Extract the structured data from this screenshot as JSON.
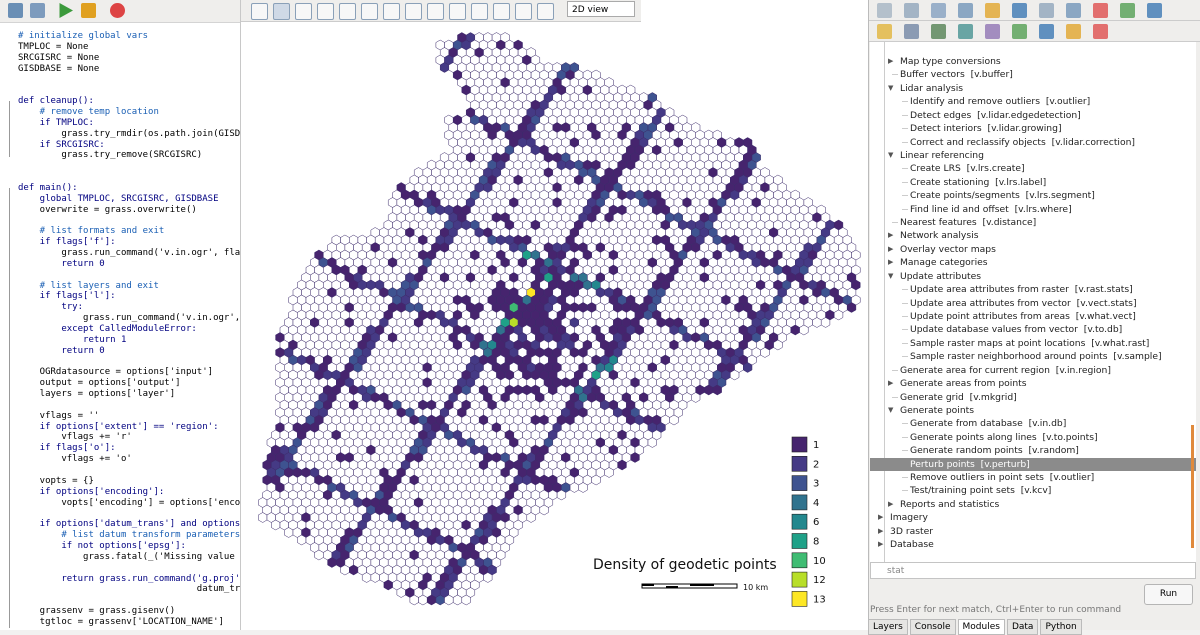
{
  "editor": {
    "blocks": [
      [
        "# initialize global vars",
        "TMPLOC = None",
        "SRCGISRC = None",
        "GISDBASE = None"
      ],
      [
        "def cleanup():",
        "    # remove temp location",
        "    if TMPLOC:",
        "        grass.try_rmdir(os.path.join(GISDBASE",
        "    if SRCGISRC:",
        "        grass.try_remove(SRCGISRC)"
      ],
      [
        "def main():",
        "    global TMPLOC, SRCGISRC, GISDBASE",
        "    overwrite = grass.overwrite()"
      ],
      [
        "    # list formats and exit",
        "    if flags['f']:",
        "        grass.run_command('v.in.ogr', flags",
        "        return 0"
      ],
      [
        "    # list layers and exit",
        "    if flags['l']:",
        "        try:",
        "            grass.run_command('v.in.ogr', f",
        "        except CalledModuleError:",
        "            return 1",
        "        return 0"
      ],
      [
        "    OGRdatasource = options['input']",
        "    output = options['output']",
        "    layers = options['layer']"
      ],
      [
        "    vflags = ''",
        "    if options['extent'] == 'region':",
        "        vflags += 'r'",
        "    if flags['o']:",
        "        vflags += 'o'"
      ],
      [
        "    vopts = {}",
        "    if options['encoding']:",
        "        vopts['encoding'] = options['encodi"
      ],
      [
        "    if options['datum_trans'] and options['",
        "        # list datum transform parameters",
        "        if not options['epsg']:",
        "            grass.fatal(_('Missing value fo"
      ],
      [
        "        return grass.run_command('g.proj', ",
        "                                 datum_trans"
      ],
      [
        "    grassenv = grass.gisenv()",
        "    tgtloc = grassenv['LOCATION_NAME']"
      ]
    ]
  },
  "map": {
    "view_mode": "2D view",
    "title": "Density of geodetic points",
    "scale_label": "10 km",
    "legend": [
      {
        "label": "1",
        "color": "#46246e"
      },
      {
        "label": "2",
        "color": "#453a85"
      },
      {
        "label": "3",
        "color": "#3e5390"
      },
      {
        "label": "4",
        "color": "#30738e"
      },
      {
        "label": "6",
        "color": "#23888e"
      },
      {
        "label": "8",
        "color": "#1fa188"
      },
      {
        "label": "10",
        "color": "#3fbc73"
      },
      {
        "label": "12",
        "color": "#b8de29"
      },
      {
        "label": "13",
        "color": "#fde725"
      }
    ]
  },
  "modules": {
    "items": [
      {
        "text": "Map type conversions",
        "level": 1,
        "node": "collapsed"
      },
      {
        "text": "Buffer vectors  [v.buffer]",
        "level": 1,
        "node": "leaf"
      },
      {
        "text": "Lidar analysis",
        "level": 1,
        "node": "expanded"
      },
      {
        "text": "Identify and remove outliers  [v.outlier]",
        "level": 2,
        "node": "leaf"
      },
      {
        "text": "Detect edges  [v.lidar.edgedetection]",
        "level": 2,
        "node": "leaf"
      },
      {
        "text": "Detect interiors  [v.lidar.growing]",
        "level": 2,
        "node": "leaf"
      },
      {
        "text": "Correct and reclassify objects  [v.lidar.correction]",
        "level": 2,
        "node": "leaf"
      },
      {
        "text": "Linear referencing",
        "level": 1,
        "node": "expanded"
      },
      {
        "text": "Create LRS  [v.lrs.create]",
        "level": 2,
        "node": "leaf"
      },
      {
        "text": "Create stationing  [v.lrs.label]",
        "level": 2,
        "node": "leaf"
      },
      {
        "text": "Create points/segments  [v.lrs.segment]",
        "level": 2,
        "node": "leaf"
      },
      {
        "text": "Find line id and offset  [v.lrs.where]",
        "level": 2,
        "node": "leaf"
      },
      {
        "text": "Nearest features  [v.distance]",
        "level": 1,
        "node": "leaf"
      },
      {
        "text": "Network analysis",
        "level": 1,
        "node": "collapsed"
      },
      {
        "text": "Overlay vector maps",
        "level": 1,
        "node": "collapsed"
      },
      {
        "text": "Manage categories",
        "level": 1,
        "node": "collapsed"
      },
      {
        "text": "Update attributes",
        "level": 1,
        "node": "expanded"
      },
      {
        "text": "Update area attributes from raster  [v.rast.stats]",
        "level": 2,
        "node": "leaf"
      },
      {
        "text": "Update area attributes from vector  [v.vect.stats]",
        "level": 2,
        "node": "leaf"
      },
      {
        "text": "Update point attributes from areas  [v.what.vect]",
        "level": 2,
        "node": "leaf"
      },
      {
        "text": "Update database values from vector  [v.to.db]",
        "level": 2,
        "node": "leaf"
      },
      {
        "text": "Sample raster maps at point locations  [v.what.rast]",
        "level": 2,
        "node": "leaf"
      },
      {
        "text": "Sample raster neighborhood around points  [v.sample]",
        "level": 2,
        "node": "leaf"
      },
      {
        "text": "Generate area for current region  [v.in.region]",
        "level": 1,
        "node": "leaf"
      },
      {
        "text": "Generate areas from points",
        "level": 1,
        "node": "collapsed"
      },
      {
        "text": "Generate grid  [v.mkgrid]",
        "level": 1,
        "node": "leaf"
      },
      {
        "text": "Generate points",
        "level": 1,
        "node": "expanded"
      },
      {
        "text": "Generate from database  [v.in.db]",
        "level": 2,
        "node": "leaf"
      },
      {
        "text": "Generate points along lines  [v.to.points]",
        "level": 2,
        "node": "leaf"
      },
      {
        "text": "Generate random points  [v.random]",
        "level": 2,
        "node": "leaf"
      },
      {
        "text": "Perturb points  [v.perturb]",
        "level": 2,
        "node": "leaf",
        "selected": true
      },
      {
        "text": "Remove outliers in point sets  [v.outlier]",
        "level": 2,
        "node": "leaf"
      },
      {
        "text": "Test/training point sets  [v.kcv]",
        "level": 2,
        "node": "leaf"
      },
      {
        "text": "Reports and statistics",
        "level": 1,
        "node": "collapsed"
      },
      {
        "text": "Imagery",
        "level": 0,
        "node": "collapsed"
      },
      {
        "text": "3D raster",
        "level": 0,
        "node": "collapsed"
      },
      {
        "text": "Database",
        "level": 0,
        "node": "collapsed"
      }
    ],
    "search": "stat",
    "run": "Run",
    "hint": "Press Enter for next match, Ctrl+Enter to run command",
    "tabs": [
      "Layers",
      "Console",
      "Modules",
      "Data",
      "Python"
    ],
    "active_tab": 2
  }
}
